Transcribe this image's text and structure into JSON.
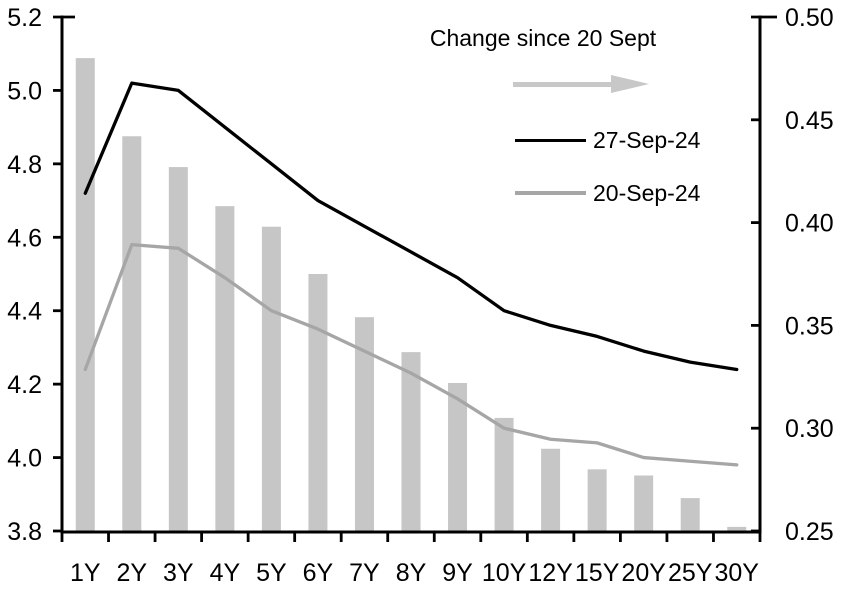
{
  "legend": {
    "title": "Change since 20 Sept",
    "arrow_color": "#c8c8c8",
    "items": [
      {
        "label": "27-Sep-24",
        "color": "#000000",
        "swatch_thickness": 3
      },
      {
        "label": "20-Sep-24",
        "color": "#a6a6a6",
        "swatch_thickness": 4
      }
    ]
  },
  "chart_data": {
    "type": "bar+line combo",
    "categories": [
      "1Y",
      "2Y",
      "3Y",
      "4Y",
      "5Y",
      "6Y",
      "7Y",
      "8Y",
      "9Y",
      "10Y",
      "12Y",
      "15Y",
      "20Y",
      "25Y",
      "30Y"
    ],
    "series": [
      {
        "name": "Change since 20 Sept",
        "type": "bar",
        "axis": "right",
        "color": "#c6c6c6",
        "values": [
          0.48,
          0.442,
          0.427,
          0.408,
          0.398,
          0.375,
          0.354,
          0.337,
          0.322,
          0.305,
          0.29,
          0.28,
          0.277,
          0.266,
          0.252
        ]
      },
      {
        "name": "27-Sep-24",
        "type": "line",
        "axis": "left",
        "color": "#000000",
        "values": [
          4.72,
          5.02,
          5.0,
          4.9,
          4.8,
          4.7,
          4.63,
          4.56,
          4.49,
          4.4,
          4.36,
          4.33,
          4.29,
          4.26,
          4.24
        ]
      },
      {
        "name": "20-Sep-24",
        "type": "line",
        "axis": "left",
        "color": "#a6a6a6",
        "values": [
          4.24,
          4.58,
          4.57,
          4.49,
          4.4,
          4.35,
          4.29,
          4.23,
          4.16,
          4.08,
          4.05,
          4.04,
          4.0,
          3.99,
          3.98
        ]
      }
    ],
    "left_axis": {
      "min": 3.8,
      "max": 5.2,
      "step": 0.2,
      "tick_labels": [
        "3.8",
        "4.0",
        "4.2",
        "4.4",
        "4.6",
        "4.8",
        "5.0",
        "5.2"
      ]
    },
    "right_axis": {
      "min": 0.25,
      "max": 0.5,
      "step": 0.05,
      "tick_labels": [
        "0.25",
        "0.30",
        "0.35",
        "0.40",
        "0.45",
        "0.50"
      ]
    },
    "grid": false,
    "legend_position": "top-right-inside"
  }
}
